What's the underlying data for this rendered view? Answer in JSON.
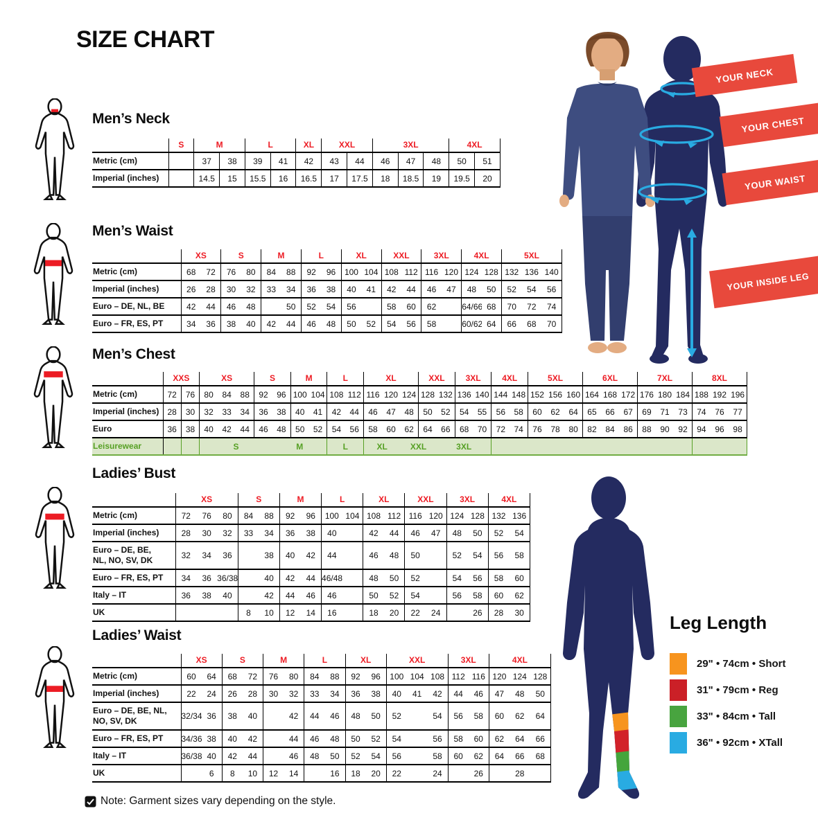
{
  "page": {
    "title": "SIZE CHART",
    "note": "Note: Garment sizes vary depending on the style."
  },
  "colors": {
    "accent_red": "#ED1C24",
    "ribbon_red": "#E8493C",
    "navy": "#242B60",
    "cyan": "#29ABE2",
    "leisure_green": "#56A024",
    "leisure_bg": "#DBE7C9",
    "skin": "#E3AC82",
    "hair_brown": "#7B4B2A"
  },
  "ribbons": {
    "neck": "YOUR NECK",
    "chest": "YOUR CHEST",
    "waist": "YOUR WAIST",
    "inside_leg": "YOUR INSIDE LEG"
  },
  "leg_length": {
    "title": "Leg Length",
    "items": [
      {
        "color": "#F7941E",
        "label": "29\" • 74cm • Short"
      },
      {
        "color": "#CB2027",
        "label": "31\" • 79cm • Reg"
      },
      {
        "color": "#48A43F",
        "label": "33\" • 84cm • Tall"
      },
      {
        "color": "#29ABE2",
        "label": "36\" • 92cm • XTall"
      }
    ]
  },
  "tables": [
    {
      "id": "mens-neck",
      "title": "Men’s Neck",
      "label_w": 110,
      "all_dividers": true,
      "sizes": [
        {
          "label": "S",
          "span": 1
        },
        {
          "label": "M",
          "span": 2
        },
        {
          "label": "L",
          "span": 2
        },
        {
          "label": "XL",
          "span": 1
        },
        {
          "label": "XXL",
          "span": 2
        },
        {
          "label": "3XL",
          "span": 3
        },
        {
          "label": "4XL",
          "span": 2
        }
      ],
      "rows": [
        {
          "label": "Metric (cm)",
          "cells": [
            "",
            "37",
            "38",
            "39",
            "41",
            "42",
            "43",
            "44",
            "46",
            "47",
            "48",
            "50",
            "51"
          ]
        },
        {
          "label": "Imperial (inches)",
          "cells": [
            "",
            "14.5",
            "15",
            "15.5",
            "16",
            "16.5",
            "17",
            "17.5",
            "18",
            "18.5",
            "19",
            "19.5",
            "20"
          ]
        }
      ]
    },
    {
      "id": "mens-waist",
      "title": "Men’s Waist",
      "label_w": 128,
      "sizes": [
        {
          "label": "XS",
          "span": 2
        },
        {
          "label": "S",
          "span": 2
        },
        {
          "label": "M",
          "span": 2
        },
        {
          "label": "L",
          "span": 2
        },
        {
          "label": "XL",
          "span": 2
        },
        {
          "label": "XXL",
          "span": 2
        },
        {
          "label": "3XL",
          "span": 2
        },
        {
          "label": "4XL",
          "span": 2
        },
        {
          "label": "5XL",
          "span": 3
        }
      ],
      "rows": [
        {
          "label": "Metric (cm)",
          "cells": [
            "68",
            "72",
            "76",
            "80",
            "84",
            "88",
            "92",
            "96",
            "100",
            "104",
            "108",
            "112",
            "116",
            "120",
            "124",
            "128",
            "132",
            "136",
            "140"
          ]
        },
        {
          "label": "Imperial (inches)",
          "cells": [
            "26",
            "28",
            "30",
            "32",
            "33",
            "34",
            "36",
            "38",
            "40",
            "41",
            "42",
            "44",
            "46",
            "47",
            "48",
            "50",
            "52",
            "54",
            "56"
          ]
        },
        {
          "label": "Euro – DE, NL, BE",
          "cells": [
            "42",
            "44",
            "46",
            "48",
            "",
            "50",
            "52",
            "54",
            "56",
            "",
            "58",
            "60",
            "62",
            "",
            "64/66",
            "68",
            "70",
            "72",
            "74"
          ]
        },
        {
          "label": "Euro – FR, ES, PT",
          "cells": [
            "34",
            "36",
            "38",
            "40",
            "42",
            "44",
            "46",
            "48",
            "50",
            "52",
            "54",
            "56",
            "58",
            "",
            "60/62",
            "64",
            "66",
            "68",
            "70"
          ]
        }
      ]
    },
    {
      "id": "mens-chest",
      "title": "Men’s Chest",
      "label_w": 102,
      "extra_dividers": [
        0
      ],
      "sizes": [
        {
          "label": "XXS",
          "span": 2
        },
        {
          "label": "XS",
          "span": 3
        },
        {
          "label": "S",
          "span": 2
        },
        {
          "label": "M",
          "span": 2
        },
        {
          "label": "L",
          "span": 2
        },
        {
          "label": "XL",
          "span": 3
        },
        {
          "label": "XXL",
          "span": 2
        },
        {
          "label": "3XL",
          "span": 2
        },
        {
          "label": "4XL",
          "span": 2
        },
        {
          "label": "5XL",
          "span": 3
        },
        {
          "label": "6XL",
          "span": 3
        },
        {
          "label": "7XL",
          "span": 3
        },
        {
          "label": "8XL",
          "span": 3
        }
      ],
      "rows": [
        {
          "label": "Metric (cm)",
          "cells": [
            "72",
            "76",
            "80",
            "84",
            "88",
            "92",
            "96",
            "100",
            "104",
            "108",
            "112",
            "116",
            "120",
            "124",
            "128",
            "132",
            "136",
            "140",
            "144",
            "148",
            "152",
            "156",
            "160",
            "164",
            "168",
            "172",
            "176",
            "180",
            "184",
            "188",
            "192",
            "196"
          ]
        },
        {
          "label": "Imperial (inches)",
          "cells": [
            "28",
            "30",
            "32",
            "33",
            "34",
            "36",
            "38",
            "40",
            "41",
            "42",
            "44",
            "46",
            "47",
            "48",
            "50",
            "52",
            "54",
            "55",
            "56",
            "58",
            "60",
            "62",
            "64",
            "65",
            "66",
            "67",
            "69",
            "71",
            "73",
            "74",
            "76",
            "77"
          ]
        },
        {
          "label": "Euro",
          "cells": [
            "36",
            "38",
            "40",
            "42",
            "44",
            "46",
            "48",
            "50",
            "52",
            "54",
            "56",
            "58",
            "60",
            "62",
            "64",
            "66",
            "68",
            "70",
            "72",
            "74",
            "76",
            "78",
            "80",
            "82",
            "84",
            "86",
            "88",
            "90",
            "92",
            "94",
            "96",
            "98"
          ]
        },
        {
          "label": "Leisurewear",
          "cls": "leis",
          "spans": [
            [
              "",
              1
            ],
            [
              "",
              1
            ],
            [
              "S",
              4
            ],
            [
              "M",
              3
            ],
            [
              "L",
              2
            ],
            [
              "XL",
              2
            ],
            [
              "XXL",
              2
            ],
            [
              "3XL",
              3
            ],
            [
              "",
              11
            ],
            [
              "",
              3
            ]
          ]
        }
      ]
    },
    {
      "id": "ladies-bust",
      "title": "Ladies’ Bust",
      "label_w": 120,
      "sizes": [
        {
          "label": "XS",
          "span": 3
        },
        {
          "label": "S",
          "span": 2
        },
        {
          "label": "M",
          "span": 2
        },
        {
          "label": "L",
          "span": 2
        },
        {
          "label": "XL",
          "span": 2
        },
        {
          "label": "XXL",
          "span": 2
        },
        {
          "label": "3XL",
          "span": 2
        },
        {
          "label": "4XL",
          "span": 2
        }
      ],
      "rows": [
        {
          "label": "Metric (cm)",
          "cells": [
            "72",
            "76",
            "80",
            "84",
            "88",
            "92",
            "96",
            "100",
            "104",
            "108",
            "112",
            "116",
            "120",
            "124",
            "128",
            "132",
            "136"
          ]
        },
        {
          "label": "Imperial (inches)",
          "cells": [
            "28",
            "30",
            "32",
            "33",
            "34",
            "36",
            "38",
            "40",
            "",
            "42",
            "44",
            "46",
            "47",
            "48",
            "50",
            "52",
            "54"
          ]
        },
        {
          "label": "Euro –  DE, BE,\nNL, NO, SV, DK",
          "cells": [
            "32",
            "34",
            "36",
            "",
            "38",
            "40",
            "42",
            "44",
            "",
            "46",
            "48",
            "50",
            "",
            "52",
            "54",
            "56",
            "58"
          ]
        },
        {
          "label": "Euro – FR, ES, PT",
          "cells": [
            "34",
            "36",
            "36/38",
            "",
            "40",
            "42",
            "44",
            "46/48",
            "",
            "48",
            "50",
            "52",
            "",
            "54",
            "56",
            "58",
            "60"
          ]
        },
        {
          "label": "Italy – IT",
          "cells": [
            "36",
            "38",
            "40",
            "",
            "42",
            "44",
            "46",
            "46",
            "",
            "50",
            "52",
            "54",
            "",
            "56",
            "58",
            "60",
            "62"
          ]
        },
        {
          "label": "UK",
          "cells": [
            "",
            "",
            "",
            "8",
            "10",
            "12",
            "14",
            "16",
            "",
            "18",
            "20",
            "22",
            "24",
            "",
            "26",
            "28",
            "30"
          ]
        }
      ]
    },
    {
      "id": "ladies-waist",
      "title": "Ladies’ Waist",
      "label_w": 128,
      "sizes": [
        {
          "label": "XS",
          "span": 2
        },
        {
          "label": "S",
          "span": 2
        },
        {
          "label": "M",
          "span": 2
        },
        {
          "label": "L",
          "span": 2
        },
        {
          "label": "XL",
          "span": 2
        },
        {
          "label": "XXL",
          "span": 3
        },
        {
          "label": "3XL",
          "span": 2
        },
        {
          "label": "4XL",
          "span": 3
        }
      ],
      "rows": [
        {
          "label": "Metric (cm)",
          "cells": [
            "60",
            "64",
            "68",
            "72",
            "76",
            "80",
            "84",
            "88",
            "92",
            "96",
            "100",
            "104",
            "108",
            "112",
            "116",
            "120",
            "124",
            "128"
          ]
        },
        {
          "label": "Imperial (inches)",
          "cells": [
            "22",
            "24",
            "26",
            "28",
            "30",
            "32",
            "33",
            "34",
            "36",
            "38",
            "40",
            "41",
            "42",
            "44",
            "46",
            "47",
            "48",
            "50"
          ]
        },
        {
          "label": "Euro – DE, BE, NL,\nNO, SV, DK",
          "cells": [
            "32/34",
            "36",
            "38",
            "40",
            "",
            "42",
            "44",
            "46",
            "48",
            "50",
            "52",
            "",
            "54",
            "56",
            "58",
            "60",
            "62",
            "64"
          ]
        },
        {
          "label": "Euro – FR, ES, PT",
          "cells": [
            "34/36",
            "38",
            "40",
            "42",
            "",
            "44",
            "46",
            "48",
            "50",
            "52",
            "54",
            "",
            "56",
            "58",
            "60",
            "62",
            "64",
            "66"
          ]
        },
        {
          "label": "Italy – IT",
          "cells": [
            "36/38",
            "40",
            "42",
            "44",
            "",
            "46",
            "48",
            "50",
            "52",
            "54",
            "56",
            "",
            "58",
            "60",
            "62",
            "64",
            "66",
            "68"
          ]
        },
        {
          "label": "UK",
          "cells": [
            "",
            "6",
            "8",
            "10",
            "12",
            "14",
            "",
            "16",
            "18",
            "20",
            "22",
            "",
            "24",
            "",
            "26",
            "",
            "28",
            ""
          ]
        }
      ]
    }
  ]
}
